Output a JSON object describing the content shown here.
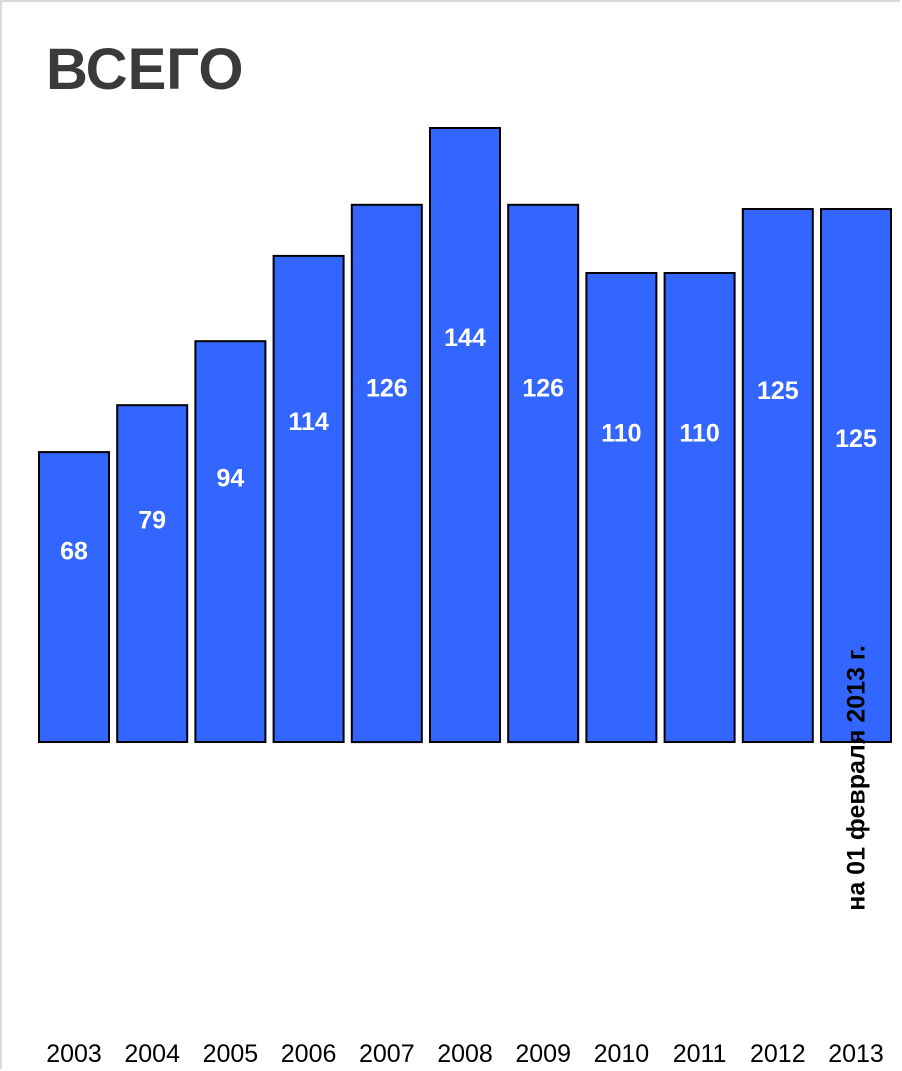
{
  "chart_data": {
    "type": "bar",
    "title": "ВСЕГО",
    "categories": [
      "2003",
      "2004",
      "2005",
      "2006",
      "2007",
      "2008",
      "2009",
      "2010",
      "2011",
      "2012",
      "2013"
    ],
    "values": [
      68,
      79,
      94,
      114,
      126,
      144,
      126,
      110,
      110,
      125,
      125
    ],
    "xlabel": "",
    "ylabel": "",
    "ylim": [
      0,
      144
    ],
    "grid": false,
    "bar_color": "#3366ff",
    "annotation": "на 01 февраля 2013 г."
  }
}
